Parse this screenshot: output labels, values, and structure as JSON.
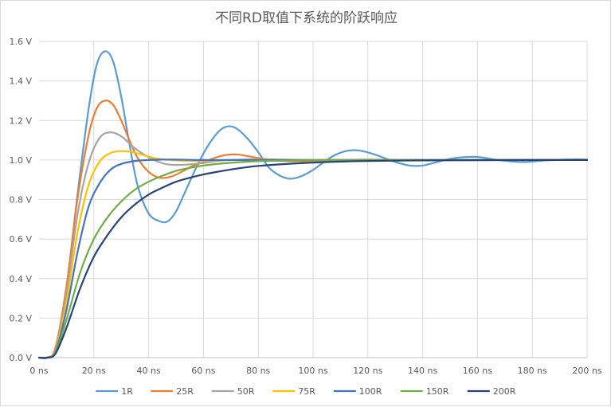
{
  "chart_data": {
    "type": "line",
    "title": "不同RD取值下系统的阶跃响应",
    "xlabel": "",
    "ylabel": "",
    "xlim": [
      0,
      200
    ],
    "ylim": [
      0,
      1.6
    ],
    "grid": true,
    "legend_position": "bottom",
    "x_ticks": [
      {
        "value": 0,
        "label": "0 ns"
      },
      {
        "value": 20,
        "label": "20 ns"
      },
      {
        "value": 40,
        "label": "40 ns"
      },
      {
        "value": 60,
        "label": "60 ns"
      },
      {
        "value": 80,
        "label": "80 ns"
      },
      {
        "value": 100,
        "label": "100 ns"
      },
      {
        "value": 120,
        "label": "120 ns"
      },
      {
        "value": 140,
        "label": "140 ns"
      },
      {
        "value": 160,
        "label": "160 ns"
      },
      {
        "value": 180,
        "label": "180 ns"
      },
      {
        "value": 200,
        "label": "200 ns"
      }
    ],
    "y_ticks": [
      {
        "value": 0.0,
        "label": "0.0 V"
      },
      {
        "value": 0.2,
        "label": "0.2 V"
      },
      {
        "value": 0.4,
        "label": "0.4 V"
      },
      {
        "value": 0.6,
        "label": "0.6 V"
      },
      {
        "value": 0.8,
        "label": "0.8 V"
      },
      {
        "value": 1.0,
        "label": "1.0 V"
      },
      {
        "value": 1.2,
        "label": "1.2 V"
      },
      {
        "value": 1.4,
        "label": "1.4 V"
      },
      {
        "value": 1.6,
        "label": "1.6 V"
      }
    ],
    "series": [
      {
        "name": "1R",
        "color": "#5b9bd5",
        "points": [
          [
            0,
            0
          ],
          [
            3,
            0
          ],
          [
            6,
            0.05
          ],
          [
            10,
            0.35
          ],
          [
            14,
            0.82
          ],
          [
            18,
            1.25
          ],
          [
            21,
            1.48
          ],
          [
            24,
            1.55
          ],
          [
            27,
            1.5
          ],
          [
            30,
            1.32
          ],
          [
            33,
            1.08
          ],
          [
            36,
            0.87
          ],
          [
            40,
            0.73
          ],
          [
            44,
            0.69
          ],
          [
            47,
            0.69
          ],
          [
            50,
            0.74
          ],
          [
            54,
            0.86
          ],
          [
            58,
            0.98
          ],
          [
            62,
            1.08
          ],
          [
            66,
            1.15
          ],
          [
            69,
            1.17
          ],
          [
            72,
            1.16
          ],
          [
            76,
            1.11
          ],
          [
            80,
            1.04
          ],
          [
            84,
            0.96
          ],
          [
            88,
            0.92
          ],
          [
            92,
            0.905
          ],
          [
            96,
            0.92
          ],
          [
            100,
            0.95
          ],
          [
            104,
            0.99
          ],
          [
            108,
            1.025
          ],
          [
            112,
            1.045
          ],
          [
            115,
            1.05
          ],
          [
            118,
            1.045
          ],
          [
            122,
            1.03
          ],
          [
            126,
            1.01
          ],
          [
            130,
            0.99
          ],
          [
            134,
            0.975
          ],
          [
            137,
            0.97
          ],
          [
            140,
            0.972
          ],
          [
            144,
            0.985
          ],
          [
            148,
            1.0
          ],
          [
            152,
            1.01
          ],
          [
            156,
            1.015
          ],
          [
            159,
            1.016
          ],
          [
            162,
            1.012
          ],
          [
            166,
            1.003
          ],
          [
            170,
            0.996
          ],
          [
            174,
            0.991
          ],
          [
            177,
            0.99
          ],
          [
            180,
            0.992
          ],
          [
            184,
            0.997
          ],
          [
            188,
            1.0
          ],
          [
            192,
            1.002
          ],
          [
            196,
            1.003
          ],
          [
            200,
            1.002
          ]
        ]
      },
      {
        "name": "25R",
        "color": "#ed7d31",
        "points": [
          [
            0,
            0
          ],
          [
            3,
            0
          ],
          [
            6,
            0.05
          ],
          [
            10,
            0.36
          ],
          [
            14,
            0.8
          ],
          [
            18,
            1.12
          ],
          [
            21,
            1.26
          ],
          [
            24,
            1.3
          ],
          [
            27,
            1.28
          ],
          [
            30,
            1.2
          ],
          [
            33,
            1.1
          ],
          [
            36,
            1.01
          ],
          [
            40,
            0.94
          ],
          [
            44,
            0.91
          ],
          [
            48,
            0.915
          ],
          [
            52,
            0.94
          ],
          [
            56,
            0.97
          ],
          [
            60,
            0.99
          ],
          [
            64,
            1.01
          ],
          [
            68,
            1.025
          ],
          [
            72,
            1.028
          ],
          [
            76,
            1.02
          ],
          [
            80,
            1.01
          ],
          [
            85,
            1.0
          ],
          [
            90,
            0.995
          ],
          [
            95,
            0.994
          ],
          [
            100,
            0.996
          ],
          [
            110,
            1.0
          ],
          [
            120,
            1.002
          ],
          [
            140,
            1.0
          ],
          [
            160,
            1.0
          ],
          [
            200,
            1.0
          ]
        ]
      },
      {
        "name": "50R",
        "color": "#a5a5a5",
        "points": [
          [
            0,
            0
          ],
          [
            3,
            0
          ],
          [
            6,
            0.04
          ],
          [
            10,
            0.32
          ],
          [
            14,
            0.72
          ],
          [
            18,
            0.98
          ],
          [
            22,
            1.11
          ],
          [
            26,
            1.14
          ],
          [
            30,
            1.12
          ],
          [
            34,
            1.07
          ],
          [
            38,
            1.03
          ],
          [
            42,
            1.0
          ],
          [
            46,
            0.98
          ],
          [
            50,
            0.975
          ],
          [
            55,
            0.978
          ],
          [
            60,
            0.985
          ],
          [
            65,
            0.995
          ],
          [
            70,
            1.0
          ],
          [
            80,
            1.004
          ],
          [
            90,
            1.002
          ],
          [
            100,
            1.0
          ],
          [
            120,
            1.0
          ],
          [
            200,
            1.0
          ]
        ]
      },
      {
        "name": "75R",
        "color": "#ffc000",
        "points": [
          [
            0,
            0
          ],
          [
            3,
            0
          ],
          [
            6,
            0.035
          ],
          [
            10,
            0.28
          ],
          [
            14,
            0.63
          ],
          [
            18,
            0.87
          ],
          [
            22,
            0.99
          ],
          [
            26,
            1.035
          ],
          [
            30,
            1.045
          ],
          [
            34,
            1.04
          ],
          [
            38,
            1.025
          ],
          [
            42,
            1.01
          ],
          [
            46,
            1.002
          ],
          [
            50,
            0.998
          ],
          [
            55,
            0.996
          ],
          [
            60,
            0.997
          ],
          [
            70,
            1.0
          ],
          [
            80,
            1.001
          ],
          [
            100,
            1.0
          ],
          [
            200,
            1.0
          ]
        ]
      },
      {
        "name": "100R",
        "color": "#4472c4",
        "points": [
          [
            0,
            0
          ],
          [
            3,
            0
          ],
          [
            6,
            0.03
          ],
          [
            10,
            0.24
          ],
          [
            14,
            0.53
          ],
          [
            18,
            0.76
          ],
          [
            22,
            0.88
          ],
          [
            26,
            0.95
          ],
          [
            30,
            0.98
          ],
          [
            35,
            0.995
          ],
          [
            40,
            1.0
          ],
          [
            45,
            1.002
          ],
          [
            50,
            1.002
          ],
          [
            60,
            1.0
          ],
          [
            80,
            1.0
          ],
          [
            200,
            1.0
          ]
        ]
      },
      {
        "name": "150R",
        "color": "#70ad47",
        "points": [
          [
            0,
            0
          ],
          [
            3,
            0
          ],
          [
            6,
            0.025
          ],
          [
            10,
            0.19
          ],
          [
            15,
            0.43
          ],
          [
            20,
            0.6
          ],
          [
            25,
            0.71
          ],
          [
            30,
            0.79
          ],
          [
            35,
            0.85
          ],
          [
            40,
            0.89
          ],
          [
            45,
            0.92
          ],
          [
            50,
            0.945
          ],
          [
            55,
            0.96
          ],
          [
            60,
            0.972
          ],
          [
            65,
            0.98
          ],
          [
            70,
            0.986
          ],
          [
            80,
            0.994
          ],
          [
            90,
            0.997
          ],
          [
            100,
            0.999
          ],
          [
            120,
            1.0
          ],
          [
            200,
            1.0
          ]
        ]
      },
      {
        "name": "200R",
        "color": "#264478",
        "points": [
          [
            0,
            0
          ],
          [
            3,
            0
          ],
          [
            6,
            0.02
          ],
          [
            10,
            0.15
          ],
          [
            15,
            0.35
          ],
          [
            20,
            0.51
          ],
          [
            25,
            0.62
          ],
          [
            30,
            0.71
          ],
          [
            35,
            0.775
          ],
          [
            40,
            0.825
          ],
          [
            45,
            0.86
          ],
          [
            50,
            0.89
          ],
          [
            55,
            0.91
          ],
          [
            60,
            0.927
          ],
          [
            65,
            0.94
          ],
          [
            70,
            0.952
          ],
          [
            75,
            0.962
          ],
          [
            80,
            0.97
          ],
          [
            90,
            0.98
          ],
          [
            100,
            0.987
          ],
          [
            110,
            0.992
          ],
          [
            120,
            0.995
          ],
          [
            140,
            0.998
          ],
          [
            160,
            0.999
          ],
          [
            180,
            1.0
          ],
          [
            200,
            1.0
          ]
        ]
      }
    ]
  }
}
